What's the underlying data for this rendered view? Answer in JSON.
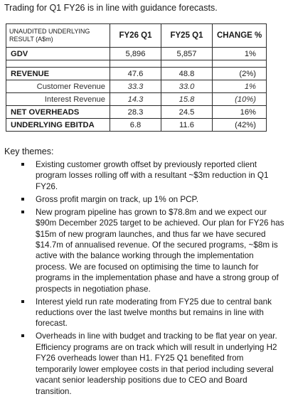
{
  "intro": "Trading for Q1 FY26 is in line with guidance forecasts.",
  "table": {
    "header": {
      "label": "UNAUDITED UNDERLYING RESULT (A$m)",
      "col1": "FY26 Q1",
      "col2": "FY25 Q1",
      "col3": "CHANGE %"
    },
    "rows": [
      {
        "label": "GDV",
        "fy26": "5,896",
        "fy25": "5,857",
        "change": "1%"
      },
      {
        "label": "REVENUE",
        "fy26": "47.6",
        "fy25": "48.8",
        "change": "(2%)"
      },
      {
        "label": "Customer Revenue",
        "fy26": "33.3",
        "fy25": "33.0",
        "change": "1%"
      },
      {
        "label": "Interest Revenue",
        "fy26": "14.3",
        "fy25": "15.8",
        "change": "(10%)"
      },
      {
        "label": "NET OVERHEADS",
        "fy26": "28.3",
        "fy25": "24.5",
        "change": "16%"
      },
      {
        "label": "UNDERLYING EBITDA",
        "fy26": "6.8",
        "fy25": "11.6",
        "change": "(42%)"
      }
    ]
  },
  "themes_title": "Key themes:",
  "themes": [
    "Existing customer growth offset by previously reported client program losses rolling off with a resultant ~$3m reduction in Q1 FY26.",
    "Gross profit margin on track, up 1% on PCP.",
    "New program pipeline has grown to $78.8m and we expect our $90m December 2025 target to be achieved. Our plan for FY26 has $15m of new program launches, and thus far we have secured $14.7m of annualised revenue.  Of the secured programs, ~$8m is active with the balance working through the implementation process. We are focused on optimising the time to launch for programs in the implementation phase and have a strong group of prospects in negotiation phase.",
    "Interest yield run rate moderating from FY25 due to central bank reductions over the last twelve months but remains in line with forecast.",
    "Overheads in line with budget and tracking to be flat year on year. Efficiency programs are on track which will result in underlying H2 FY26 overheads lower than H1.  FY25 Q1 benefited from temporarily lower employee costs in that period including several vacant senior leadership positions due to CEO and Board transition."
  ]
}
